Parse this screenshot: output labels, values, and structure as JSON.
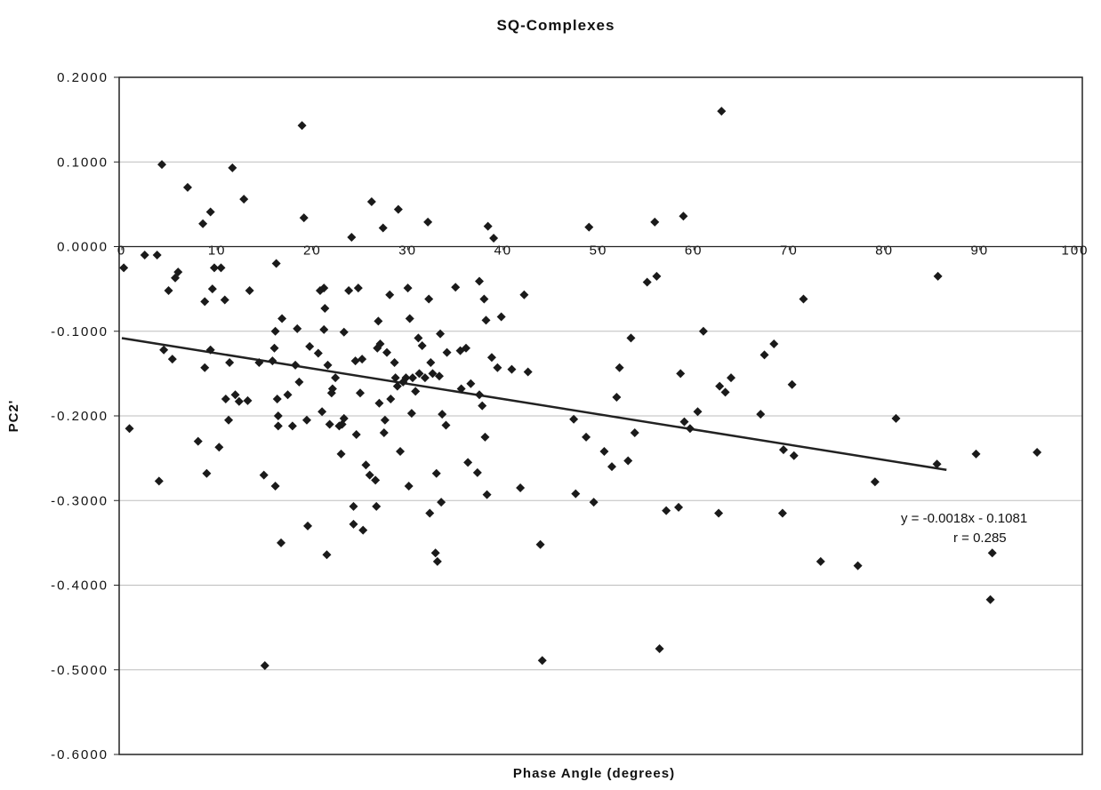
{
  "chart_data": {
    "type": "scatter",
    "title": "SQ-Complexes",
    "xlabel": "Phase Angle (degrees)",
    "ylabel": "PC2'",
    "xlim": [
      0,
      100
    ],
    "ylim": [
      -0.6,
      0.2
    ],
    "x_ticks": [
      "0",
      "10",
      "20",
      "30",
      "40",
      "50",
      "60",
      "70",
      "80",
      "90",
      "100"
    ],
    "y_ticks": [
      "0.2000",
      "0.1000",
      "0.0000",
      "-0.1000",
      "-0.2000",
      "-0.3000",
      "-0.4000",
      "-0.5000",
      "-0.6000"
    ],
    "grid": true,
    "legend": "none",
    "marker": "diamond",
    "colors": {
      "marker": "#1a1a1a",
      "trendline": "#222222",
      "grid": "#bdbdbd",
      "frame": "#222222"
    },
    "trendline": {
      "slope": -0.0018,
      "intercept": -0.1081,
      "x_range": [
        0,
        86.5
      ]
    },
    "annotations": {
      "equation": "y = -0.0018x - 0.1081",
      "r_value": "r = 0.285"
    },
    "series": [
      {
        "points": [
          [
            0.2,
            -0.025
          ],
          [
            0.8,
            -0.215
          ],
          [
            2.4,
            -0.01
          ],
          [
            3.7,
            -0.01
          ],
          [
            3.9,
            -0.277
          ],
          [
            4.2,
            0.097
          ],
          [
            4.4,
            -0.122
          ],
          [
            4.9,
            -0.052
          ],
          [
            5.3,
            -0.133
          ],
          [
            5.6,
            -0.037
          ],
          [
            5.9,
            -0.03
          ],
          [
            6.9,
            0.07
          ],
          [
            8.0,
            -0.23
          ],
          [
            8.5,
            0.027
          ],
          [
            8.7,
            -0.143
          ],
          [
            8.7,
            -0.065
          ],
          [
            8.9,
            -0.268
          ],
          [
            9.3,
            0.041
          ],
          [
            9.3,
            -0.122
          ],
          [
            9.5,
            -0.05
          ],
          [
            9.7,
            -0.025
          ],
          [
            10.2,
            -0.237
          ],
          [
            10.4,
            -0.025
          ],
          [
            10.8,
            -0.063
          ],
          [
            10.9,
            -0.18
          ],
          [
            11.2,
            -0.205
          ],
          [
            11.3,
            -0.137
          ],
          [
            11.6,
            0.093
          ],
          [
            11.9,
            -0.175
          ],
          [
            12.3,
            -0.183
          ],
          [
            12.8,
            0.056
          ],
          [
            13.2,
            -0.182
          ],
          [
            13.4,
            -0.052
          ],
          [
            14.4,
            -0.137
          ],
          [
            14.9,
            -0.27
          ],
          [
            15.0,
            -0.495
          ],
          [
            15.8,
            -0.135
          ],
          [
            16.0,
            -0.12
          ],
          [
            16.1,
            -0.1
          ],
          [
            16.1,
            -0.283
          ],
          [
            16.2,
            -0.02
          ],
          [
            16.3,
            -0.18
          ],
          [
            16.4,
            -0.212
          ],
          [
            16.4,
            -0.2
          ],
          [
            16.7,
            -0.35
          ],
          [
            16.8,
            -0.085
          ],
          [
            17.4,
            -0.175
          ],
          [
            17.9,
            -0.212
          ],
          [
            18.2,
            -0.14
          ],
          [
            18.4,
            -0.097
          ],
          [
            18.6,
            -0.16
          ],
          [
            18.9,
            0.143
          ],
          [
            19.1,
            0.034
          ],
          [
            19.4,
            -0.205
          ],
          [
            19.5,
            -0.33
          ],
          [
            19.7,
            -0.118
          ],
          [
            20.6,
            -0.126
          ],
          [
            20.8,
            -0.052
          ],
          [
            21.0,
            -0.195
          ],
          [
            21.2,
            -0.098
          ],
          [
            21.2,
            -0.049
          ],
          [
            21.3,
            -0.073
          ],
          [
            21.5,
            -0.364
          ],
          [
            21.6,
            -0.14
          ],
          [
            21.8,
            -0.21
          ],
          [
            22.0,
            -0.173
          ],
          [
            22.1,
            -0.168
          ],
          [
            22.4,
            -0.155
          ],
          [
            22.8,
            -0.212
          ],
          [
            23.0,
            -0.245
          ],
          [
            23.1,
            -0.21
          ],
          [
            23.3,
            -0.101
          ],
          [
            23.3,
            -0.203
          ],
          [
            23.8,
            -0.052
          ],
          [
            24.1,
            0.011
          ],
          [
            24.3,
            -0.307
          ],
          [
            24.3,
            -0.328
          ],
          [
            24.5,
            -0.135
          ],
          [
            24.6,
            -0.222
          ],
          [
            24.8,
            -0.049
          ],
          [
            25.0,
            -0.173
          ],
          [
            25.2,
            -0.133
          ],
          [
            25.3,
            -0.335
          ],
          [
            25.6,
            -0.258
          ],
          [
            26.0,
            -0.27
          ],
          [
            26.2,
            0.053
          ],
          [
            26.6,
            -0.276
          ],
          [
            26.7,
            -0.307
          ],
          [
            26.8,
            -0.12
          ],
          [
            26.9,
            -0.088
          ],
          [
            27.0,
            -0.185
          ],
          [
            27.1,
            -0.115
          ],
          [
            27.4,
            0.022
          ],
          [
            27.5,
            -0.22
          ],
          [
            27.6,
            -0.205
          ],
          [
            27.8,
            -0.125
          ],
          [
            28.1,
            -0.057
          ],
          [
            28.2,
            -0.18
          ],
          [
            28.6,
            -0.137
          ],
          [
            28.7,
            -0.155
          ],
          [
            28.9,
            -0.165
          ],
          [
            29.0,
            0.044
          ],
          [
            29.2,
            -0.242
          ],
          [
            29.5,
            -0.16
          ],
          [
            29.8,
            -0.155
          ],
          [
            30.0,
            -0.049
          ],
          [
            30.1,
            -0.283
          ],
          [
            30.2,
            -0.085
          ],
          [
            30.4,
            -0.197
          ],
          [
            30.5,
            -0.155
          ],
          [
            30.8,
            -0.171
          ],
          [
            31.1,
            -0.108
          ],
          [
            31.2,
            -0.15
          ],
          [
            31.5,
            -0.117
          ],
          [
            31.8,
            -0.155
          ],
          [
            32.1,
            0.029
          ],
          [
            32.2,
            -0.062
          ],
          [
            32.3,
            -0.315
          ],
          [
            32.4,
            -0.137
          ],
          [
            32.6,
            -0.15
          ],
          [
            32.9,
            -0.362
          ],
          [
            33.0,
            -0.268
          ],
          [
            33.1,
            -0.372
          ],
          [
            33.3,
            -0.153
          ],
          [
            33.4,
            -0.103
          ],
          [
            33.5,
            -0.302
          ],
          [
            33.6,
            -0.198
          ],
          [
            34.0,
            -0.211
          ],
          [
            34.1,
            -0.125
          ],
          [
            35.0,
            -0.048
          ],
          [
            35.5,
            -0.123
          ],
          [
            35.6,
            -0.168
          ],
          [
            36.1,
            -0.12
          ],
          [
            36.3,
            -0.255
          ],
          [
            36.6,
            -0.162
          ],
          [
            37.3,
            -0.267
          ],
          [
            37.5,
            -0.175
          ],
          [
            37.5,
            -0.041
          ],
          [
            37.8,
            -0.188
          ],
          [
            38.0,
            -0.062
          ],
          [
            38.1,
            -0.225
          ],
          [
            38.2,
            -0.087
          ],
          [
            38.3,
            -0.293
          ],
          [
            38.4,
            0.024
          ],
          [
            38.8,
            -0.131
          ],
          [
            39.0,
            0.01
          ],
          [
            39.4,
            -0.143
          ],
          [
            39.8,
            -0.083
          ],
          [
            40.9,
            -0.145
          ],
          [
            41.8,
            -0.285
          ],
          [
            42.2,
            -0.057
          ],
          [
            42.6,
            -0.148
          ],
          [
            43.9,
            -0.352
          ],
          [
            44.1,
            -0.489
          ],
          [
            47.4,
            -0.204
          ],
          [
            47.6,
            -0.292
          ],
          [
            48.7,
            -0.225
          ],
          [
            49.0,
            0.023
          ],
          [
            49.5,
            -0.302
          ],
          [
            50.6,
            -0.242
          ],
          [
            51.4,
            -0.26
          ],
          [
            51.9,
            -0.178
          ],
          [
            52.2,
            -0.143
          ],
          [
            53.1,
            -0.253
          ],
          [
            53.4,
            -0.108
          ],
          [
            53.8,
            -0.22
          ],
          [
            55.1,
            -0.042
          ],
          [
            55.9,
            0.029
          ],
          [
            56.1,
            -0.035
          ],
          [
            56.4,
            -0.475
          ],
          [
            57.1,
            -0.312
          ],
          [
            58.4,
            -0.308
          ],
          [
            58.6,
            -0.15
          ],
          [
            58.9,
            0.036
          ],
          [
            59.0,
            -0.207
          ],
          [
            59.6,
            -0.215
          ],
          [
            60.4,
            -0.195
          ],
          [
            61.0,
            -0.1
          ],
          [
            62.6,
            -0.315
          ],
          [
            62.7,
            -0.165
          ],
          [
            62.9,
            0.16
          ],
          [
            63.3,
            -0.172
          ],
          [
            63.9,
            -0.155
          ],
          [
            67.0,
            -0.198
          ],
          [
            67.4,
            -0.128
          ],
          [
            68.4,
            -0.115
          ],
          [
            69.3,
            -0.315
          ],
          [
            69.4,
            -0.24
          ],
          [
            70.3,
            -0.163
          ],
          [
            70.5,
            -0.247
          ],
          [
            71.5,
            -0.062
          ],
          [
            73.3,
            -0.372
          ],
          [
            77.2,
            -0.377
          ],
          [
            79.0,
            -0.278
          ],
          [
            81.2,
            -0.203
          ],
          [
            85.5,
            -0.257
          ],
          [
            85.6,
            -0.035
          ],
          [
            89.6,
            -0.245
          ],
          [
            91.1,
            -0.417
          ],
          [
            91.3,
            -0.362
          ],
          [
            96.0,
            -0.243
          ]
        ]
      }
    ]
  }
}
